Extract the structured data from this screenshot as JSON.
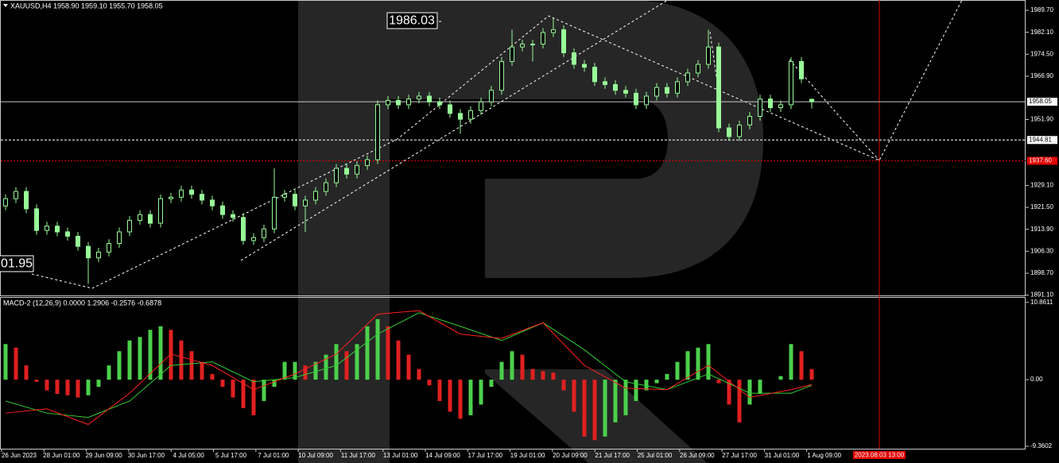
{
  "chart_data": {
    "type": "candlestick",
    "header": "XAUUSD,H4  1958.90 1959.10 1955.70 1958.05",
    "ylim": [
      1891.0,
      1993.0
    ],
    "yticks": [
      {
        "value": 1989.7,
        "label": "1989.70"
      },
      {
        "value": 1982.1,
        "label": "1982.10"
      },
      {
        "value": 1974.5,
        "label": "1974.50"
      },
      {
        "value": 1966.9,
        "label": "1966.90"
      },
      {
        "value": 1951.9,
        "label": "1951.90"
      },
      {
        "value": 1929.1,
        "label": "1929.10"
      },
      {
        "value": 1921.5,
        "label": "1921.50"
      },
      {
        "value": 1913.9,
        "label": "1913.90"
      },
      {
        "value": 1906.3,
        "label": "1906.30"
      },
      {
        "value": 1898.7,
        "label": "1898.70"
      },
      {
        "value": 1891.1,
        "label": "1891.10"
      }
    ],
    "price_levels": [
      {
        "value": 1958.05,
        "label": "1958.05",
        "line": "solid",
        "color": "#c8c8c8"
      },
      {
        "value": 1944.81,
        "label": "1944.81",
        "line": "dashed",
        "color": "#ffffff"
      },
      {
        "value": 1937.6,
        "label": "1937.60",
        "line": "dotted",
        "color": "#e00000"
      }
    ],
    "up_color": "#98fb98",
    "down_color": "#98fb98",
    "candles": [
      [
        1922,
        1926,
        1920.5,
        1924.5
      ],
      [
        1924.5,
        1928.5,
        1923,
        1927
      ],
      [
        1927,
        1928.5,
        1919.5,
        1921
      ],
      [
        1921,
        1922.5,
        1912,
        1913.5
      ],
      [
        1913.5,
        1916.5,
        1912,
        1915
      ],
      [
        1915,
        1916.5,
        1911.5,
        1913
      ],
      [
        1913,
        1914.5,
        1910,
        1911.5
      ],
      [
        1911.5,
        1913,
        1906.5,
        1908
      ],
      [
        1908,
        1909.5,
        1895,
        1904
      ],
      [
        1904,
        1907.5,
        1902.5,
        1906
      ],
      [
        1906,
        1910.5,
        1904.5,
        1909
      ],
      [
        1909,
        1914.5,
        1907.5,
        1913
      ],
      [
        1913,
        1918.5,
        1911.5,
        1917
      ],
      [
        1917,
        1920.5,
        1915.5,
        1919
      ],
      [
        1919,
        1920.5,
        1914.5,
        1916
      ],
      [
        1916,
        1926,
        1914.5,
        1924.5
      ],
      [
        1924.5,
        1926.5,
        1923,
        1925
      ],
      [
        1925,
        1929,
        1923.5,
        1927.5
      ],
      [
        1927.5,
        1929,
        1924.5,
        1926
      ],
      [
        1926,
        1927.5,
        1922.5,
        1924
      ],
      [
        1924,
        1925.5,
        1920.5,
        1922
      ],
      [
        1922,
        1923.5,
        1917.5,
        1919
      ],
      [
        1919,
        1920.5,
        1916.5,
        1918
      ],
      [
        1918,
        1919.5,
        1908.5,
        1910
      ],
      [
        1910,
        1912.5,
        1908.5,
        1911
      ],
      [
        1911,
        1915.5,
        1909.5,
        1914
      ],
      [
        1914,
        1935,
        1912.5,
        1925
      ],
      [
        1925,
        1927.5,
        1923.5,
        1926
      ],
      [
        1926,
        1927.5,
        1920.5,
        1922
      ],
      [
        1922,
        1925.5,
        1913,
        1924
      ],
      [
        1924,
        1928.5,
        1922.5,
        1927
      ],
      [
        1927,
        1931.5,
        1925.5,
        1930
      ],
      [
        1930,
        1936.5,
        1928.5,
        1935
      ],
      [
        1935,
        1936.5,
        1931.5,
        1933
      ],
      [
        1933,
        1937.5,
        1931.5,
        1936
      ],
      [
        1936,
        1939.5,
        1934.5,
        1938
      ],
      [
        1938,
        1958.5,
        1936.5,
        1957
      ],
      [
        1957,
        1960,
        1955.5,
        1958.5
      ],
      [
        1958.5,
        1960,
        1955.5,
        1957
      ],
      [
        1957,
        1960.5,
        1955.5,
        1959
      ],
      [
        1959,
        1961.5,
        1957.5,
        1960
      ],
      [
        1960,
        1961.5,
        1956.5,
        1958
      ],
      [
        1958,
        1959.5,
        1955.5,
        1957
      ],
      [
        1957,
        1958.5,
        1952.5,
        1954
      ],
      [
        1954,
        1955.5,
        1947,
        1952
      ],
      [
        1952,
        1956.5,
        1950.5,
        1955
      ],
      [
        1955,
        1959.5,
        1953.5,
        1958
      ],
      [
        1958,
        1963.5,
        1956.5,
        1962
      ],
      [
        1962,
        1973.5,
        1960.5,
        1972
      ],
      [
        1972,
        1983,
        1970.5,
        1977
      ],
      [
        1977,
        1979.5,
        1975.5,
        1978
      ],
      [
        1978,
        1979.5,
        1972,
        1978
      ],
      [
        1978,
        1983.5,
        1976.5,
        1982
      ],
      [
        1982,
        1987,
        1980.5,
        1983
      ],
      [
        1983,
        1984.5,
        1973.5,
        1975
      ],
      [
        1975,
        1976.5,
        1969.5,
        1971
      ],
      [
        1971,
        1972.5,
        1968.5,
        1970
      ],
      [
        1970,
        1971.5,
        1963.5,
        1965
      ],
      [
        1965,
        1966.5,
        1962.5,
        1964
      ],
      [
        1964,
        1965.5,
        1960.5,
        1962
      ],
      [
        1962,
        1963.5,
        1959.5,
        1961
      ],
      [
        1961,
        1962.5,
        1955.5,
        1957
      ],
      [
        1957,
        1961.5,
        1955.5,
        1960
      ],
      [
        1960,
        1964.5,
        1958.5,
        1963
      ],
      [
        1963,
        1964.5,
        1959.5,
        1961
      ],
      [
        1961,
        1966.5,
        1959.5,
        1965
      ],
      [
        1965,
        1969.5,
        1963.5,
        1968
      ],
      [
        1968,
        1972.5,
        1966.5,
        1971
      ],
      [
        1971,
        1983,
        1969.5,
        1977
      ],
      [
        1977,
        1978.5,
        1947.5,
        1949
      ],
      [
        1949,
        1950.5,
        1944.5,
        1946
      ],
      [
        1946,
        1951.5,
        1944.5,
        1950
      ],
      [
        1950,
        1954.5,
        1948.5,
        1953
      ],
      [
        1953,
        1960.5,
        1951.5,
        1959
      ],
      [
        1959,
        1960.5,
        1954.5,
        1956
      ],
      [
        1956,
        1958.5,
        1954.5,
        1957
      ],
      [
        1957,
        1973.5,
        1955.5,
        1972
      ],
      [
        1972,
        1973.5,
        1964.5,
        1966
      ],
      [
        1958.9,
        1959.1,
        1955.7,
        1958.05
      ]
    ],
    "annotations": [
      "1986.03",
      "01.95"
    ],
    "xlabels": [
      "26 Jun 2023",
      "28 Jun 01:00",
      "29 Jun 09:00",
      "30 Jun 17:00",
      "4 Jul 05:00",
      "5 Jul 17:00",
      "7 Jul 01:00",
      "10 Jul 09:00",
      "11 Jul 17:00",
      "13 Jul 01:00",
      "14 Jul 09:00",
      "17 Jul 17:00",
      "19 Jul 01:00",
      "20 Jul 09:00",
      "21 Jul 17:00",
      "25 Jul 01:00",
      "26 Jul 09:00",
      "27 Jul 17:00",
      "31 Jul 01:00",
      "1 Aug 09:00"
    ],
    "marker_time": "2023.08.03 13:00",
    "macd": {
      "title": "MACD-2 (12,26,9) 0.0000 1.2906 -0.2576 -0.6878",
      "ylim": [
        -9.7,
        11.5
      ],
      "yticks": [
        {
          "value": 10.8611,
          "label": "10.8611"
        },
        {
          "value": 0,
          "label": "0.00"
        },
        {
          "value": -9.3602,
          "label": "-9.3602"
        }
      ],
      "up_color": "#4cd04c",
      "down_color": "#e02020",
      "histogram": [
        5,
        4.5,
        2,
        -0.3,
        -1.5,
        -2,
        -2.2,
        -2.5,
        -2.2,
        -1,
        2,
        4,
        5.5,
        6,
        7,
        7.5,
        7,
        5.5,
        4,
        2.5,
        0.8,
        -1,
        -2.5,
        -4,
        -5,
        -3,
        -1,
        2.5,
        2.5,
        2,
        2.5,
        3.5,
        5,
        4,
        5,
        7.5,
        8.5,
        7.5,
        5.5,
        3.5,
        1.5,
        -0.8,
        -3,
        -4.5,
        -5.5,
        -5,
        -3.5,
        -1,
        2.5,
        4,
        3.5,
        1.5,
        1.2,
        1,
        -1.5,
        -4.5,
        -8,
        -8.5,
        -8,
        -6,
        -5,
        -3,
        -1.5,
        -0.5,
        0.8,
        2.5,
        4,
        4.5,
        5,
        -0.5,
        -3.5,
        -6,
        -3.5,
        -2,
        0,
        0.5,
        5,
        4,
        1.5
      ],
      "line_x": [
        0,
        4,
        8,
        12,
        16,
        20,
        24,
        28,
        32,
        36,
        40,
        44,
        48,
        52,
        56,
        60,
        64,
        68,
        72,
        76,
        78
      ],
      "signal": {
        "color": "#ff2020",
        "values": [
          -4.7,
          -4.1,
          -6.3,
          -1.9,
          3.6,
          2,
          -1.4,
          0.8,
          3.6,
          9.2,
          9.7,
          6.4,
          5.8,
          8,
          2,
          -1.2,
          -1.4,
          2,
          -2.5,
          -1.4,
          -0.7
        ]
      },
      "main": {
        "color": "#32cd32",
        "values": [
          -3,
          -4.7,
          -5.3,
          -3,
          2,
          2.5,
          -0.3,
          0.3,
          2,
          6.4,
          9.4,
          7.5,
          5.5,
          8,
          4.2,
          -0.3,
          -1.4,
          0.8,
          -1.9,
          -1.9,
          -0.8
        ]
      }
    }
  }
}
